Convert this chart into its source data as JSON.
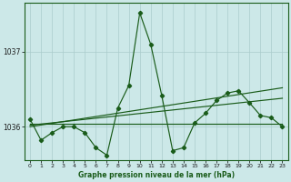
{
  "title": "Graphe pression niveau de la mer (hPa)",
  "bg_color": "#cce8e8",
  "grid_color": "#aacccc",
  "line_color": "#1a5c1a",
  "xlim": [
    -0.5,
    23.5
  ],
  "ylim": [
    1035.55,
    1037.65
  ],
  "yticks": [
    1036,
    1037
  ],
  "xticks": [
    0,
    1,
    2,
    3,
    4,
    5,
    6,
    7,
    8,
    9,
    10,
    11,
    12,
    13,
    14,
    15,
    16,
    17,
    18,
    19,
    20,
    21,
    22,
    23
  ],
  "hourly_x": [
    0,
    1,
    2,
    3,
    4,
    5,
    6,
    7,
    8,
    9,
    10,
    11,
    12,
    13,
    14,
    15,
    16,
    17,
    18,
    19,
    20,
    21,
    22,
    23
  ],
  "hourly_y": [
    1036.1,
    1035.82,
    1035.92,
    1036.0,
    1036.0,
    1035.92,
    1035.72,
    1035.62,
    1036.25,
    1036.55,
    1037.52,
    1037.1,
    1036.42,
    1035.68,
    1035.72,
    1036.05,
    1036.18,
    1036.35,
    1036.45,
    1036.48,
    1036.32,
    1036.15,
    1036.12,
    1036.0
  ],
  "line1_x": [
    0,
    23
  ],
  "line1_y": [
    1036.04,
    1036.04
  ],
  "line2_x": [
    0,
    23
  ],
  "line2_y": [
    1036.02,
    1036.38
  ],
  "line3_x": [
    0,
    23
  ],
  "line3_y": [
    1036.0,
    1036.52
  ]
}
